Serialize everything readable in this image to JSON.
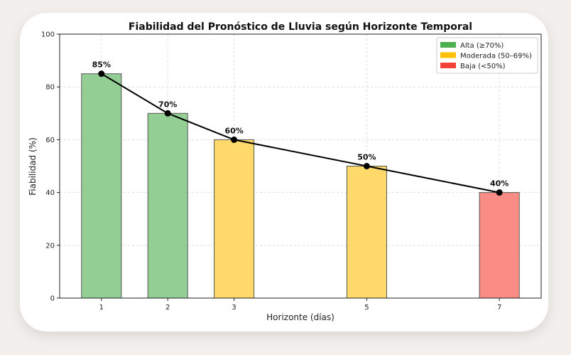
{
  "chart_data": {
    "type": "bar",
    "title": "Fiabilidad del Pronóstico de Lluvia según Horizonte Temporal",
    "xlabel": "Horizonte (días)",
    "ylabel": "Fiabilidad (%)",
    "x": [
      1,
      2,
      3,
      5,
      7
    ],
    "values": [
      85,
      70,
      60,
      50,
      40
    ],
    "data_labels": [
      "85%",
      "70%",
      "60%",
      "50%",
      "40%"
    ],
    "categories": [
      "Alta",
      "Alta",
      "Moderada",
      "Moderada",
      "Baja"
    ],
    "xticks": [
      1,
      2,
      3,
      5,
      7
    ],
    "yticks": [
      0,
      20,
      40,
      60,
      80,
      100
    ],
    "ylim": [
      0,
      100
    ],
    "xlim": [
      0.37,
      7.63
    ],
    "grid": true,
    "overlay_line": true,
    "legend_position": "top-right",
    "legend": [
      {
        "key": "Alta",
        "label": "Alta (≥70%)",
        "color": "#4caf50",
        "fill": "#93cf94"
      },
      {
        "key": "Moderada",
        "label": "Moderada (50–69%)",
        "color": "#ffc107",
        "fill": "#ffd96a"
      },
      {
        "key": "Baja",
        "label": "Baja (<50%)",
        "color": "#f44336",
        "fill": "#f98d86"
      }
    ]
  }
}
